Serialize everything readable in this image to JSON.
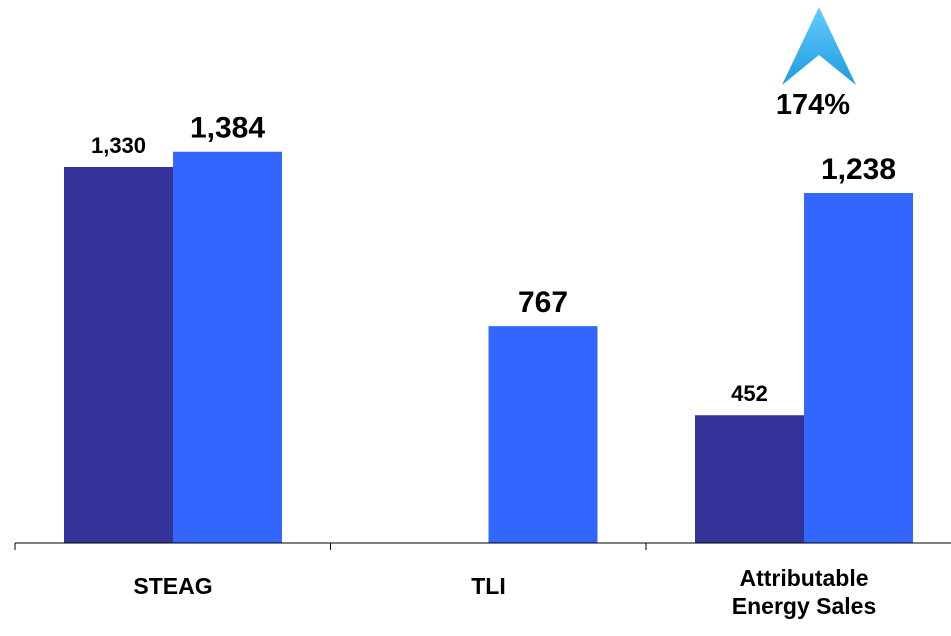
{
  "chart_data": {
    "type": "bar",
    "categories": [
      [
        "STEAG"
      ],
      [
        "TLI"
      ],
      [
        "Attributable",
        "Energy Sales"
      ]
    ],
    "series": [
      {
        "color": "#333399",
        "values": [
          1330,
          null,
          452
        ],
        "labels": [
          "1,330",
          "",
          "452"
        ]
      },
      {
        "color": "#3366FF",
        "values": [
          1384,
          767,
          1238
        ],
        "labels": [
          "1,384",
          "767",
          "1,238"
        ]
      }
    ],
    "ylim": [
      0,
      1700
    ],
    "grid": false,
    "legend": "none",
    "annotation": {
      "text": "174%",
      "icon": "up-arrow-icon",
      "color": "#33BBEE",
      "category": 2
    }
  }
}
